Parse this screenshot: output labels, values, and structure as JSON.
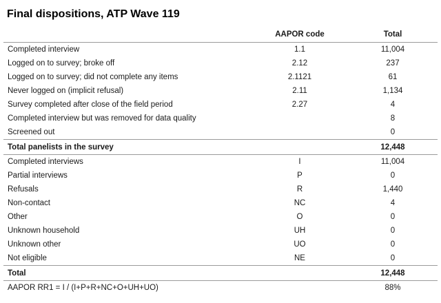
{
  "title": "Final dispositions, ATP Wave 119",
  "columns": {
    "label": "",
    "code": "AAPOR code",
    "total": "Total"
  },
  "section1": [
    {
      "label": "Completed interview",
      "code": "1.1",
      "total": "11,004"
    },
    {
      "label": "Logged on to survey; broke off",
      "code": "2.12",
      "total": "237"
    },
    {
      "label": "Logged on to survey; did not complete any items",
      "code": "2.1121",
      "total": "61"
    },
    {
      "label": "Never logged on (implicit refusal)",
      "code": "2.11",
      "total": "1,134"
    },
    {
      "label": "Survey completed after close of the field period",
      "code": "2.27",
      "total": "4"
    },
    {
      "label": "Completed interview but was removed for data quality",
      "code": "",
      "total": "8"
    },
    {
      "label": "Screened out",
      "code": "",
      "total": "0"
    }
  ],
  "subtotal": {
    "label": "Total panelists in the survey",
    "code": "",
    "total": "12,448"
  },
  "section2": [
    {
      "label": "Completed interviews",
      "code": "I",
      "total": "11,004"
    },
    {
      "label": "Partial interviews",
      "code": "P",
      "total": "0"
    },
    {
      "label": "Refusals",
      "code": "R",
      "total": "1,440"
    },
    {
      "label": "Non-contact",
      "code": "NC",
      "total": "4"
    },
    {
      "label": "Other",
      "code": "O",
      "total": "0"
    },
    {
      "label": "Unknown household",
      "code": "UH",
      "total": "0"
    },
    {
      "label": "Unknown other",
      "code": "UO",
      "total": "0"
    },
    {
      "label": "Not eligible",
      "code": "NE",
      "total": "0"
    }
  ],
  "total": {
    "label": "Total",
    "code": "",
    "total": "12,448"
  },
  "rate": {
    "label": "AAPOR RR1 = I / (I+P+R+NC+O+UH+UO)",
    "code": "",
    "total": "88%"
  }
}
